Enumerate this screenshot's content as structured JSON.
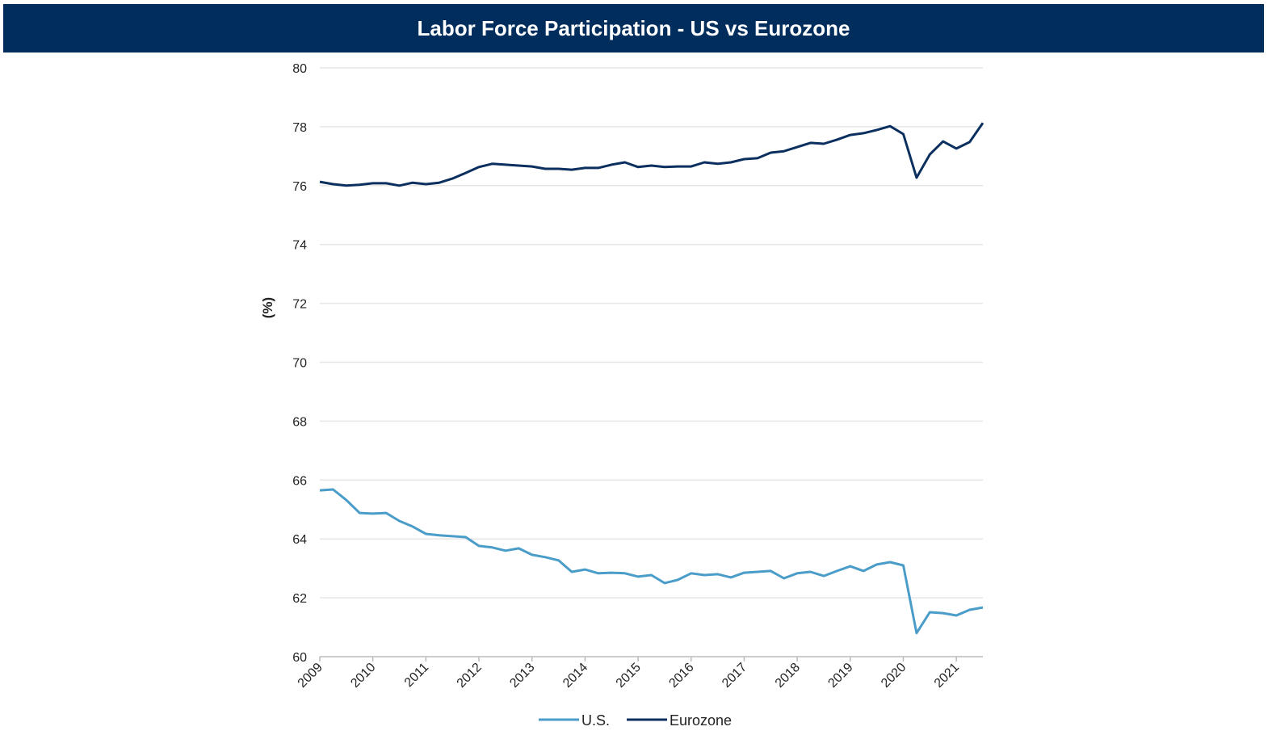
{
  "chart_data": {
    "type": "line",
    "title": "Labor Force Participation - US vs Eurozone",
    "xlabel": "",
    "ylabel": "(%)",
    "ylim": [
      60,
      80
    ],
    "xlim": [
      2009,
      2021.5
    ],
    "yticks": [
      "60",
      "62",
      "64",
      "66",
      "68",
      "70",
      "72",
      "74",
      "76",
      "78",
      "80"
    ],
    "xticks": [
      "2009",
      "2010",
      "2011",
      "2012",
      "2013",
      "2014",
      "2015",
      "2016",
      "2017",
      "2018",
      "2019",
      "2020",
      "2021"
    ],
    "grid": "horizontal",
    "legend_position": "bottom-center",
    "x_start": 2009,
    "x_step": 0.25,
    "series": [
      {
        "name": "U.S.",
        "color": "#4a9cc9",
        "values": [
          65.65,
          65.68,
          65.32,
          64.88,
          64.86,
          64.88,
          64.61,
          64.42,
          64.17,
          64.12,
          64.09,
          64.06,
          63.76,
          63.71,
          63.6,
          63.68,
          63.46,
          63.38,
          63.27,
          62.88,
          62.96,
          62.83,
          62.85,
          62.83,
          62.72,
          62.77,
          62.5,
          62.61,
          62.83,
          62.77,
          62.8,
          62.69,
          62.85,
          62.88,
          62.91,
          62.66,
          62.83,
          62.88,
          62.74,
          62.91,
          63.07,
          62.91,
          63.13,
          63.21,
          63.1,
          60.8,
          61.51,
          61.48,
          61.4,
          61.59,
          61.67
        ]
      },
      {
        "name": "Eurozone",
        "color": "#0b2f5e",
        "values": [
          76.13,
          76.05,
          76.0,
          76.03,
          76.08,
          76.08,
          76.0,
          76.1,
          76.05,
          76.1,
          76.24,
          76.43,
          76.63,
          76.74,
          76.71,
          76.68,
          76.65,
          76.57,
          76.57,
          76.54,
          76.6,
          76.6,
          76.71,
          76.79,
          76.63,
          76.68,
          76.63,
          76.65,
          76.65,
          76.79,
          76.74,
          76.79,
          76.9,
          76.93,
          77.12,
          77.17,
          77.31,
          77.45,
          77.42,
          77.56,
          77.72,
          77.78,
          77.89,
          78.02,
          77.75,
          76.27,
          77.06,
          77.5,
          77.26,
          77.48,
          78.13
        ]
      }
    ]
  }
}
